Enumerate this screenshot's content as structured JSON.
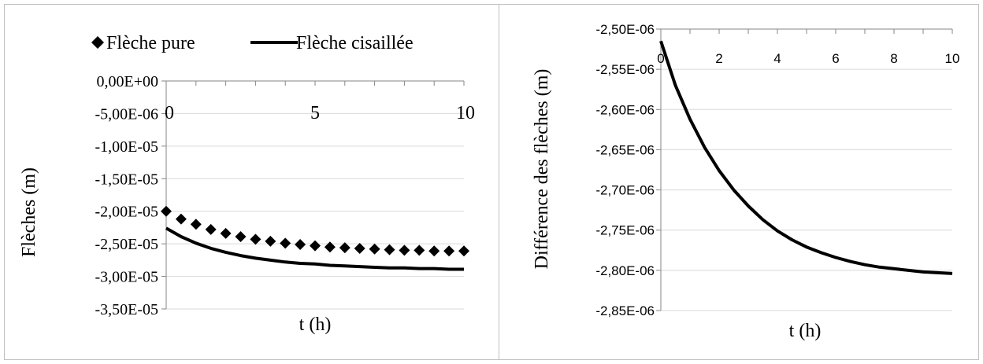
{
  "colors": {
    "ink": "#000000",
    "grid": "#d9d9d9",
    "axis": "#868686",
    "frame": "#bfbfbf"
  },
  "chart_data": [
    {
      "type": "scatter",
      "xlabel": "t (h)",
      "ylabel": "Flèches (m)",
      "xlim": [
        0,
        10
      ],
      "ylim": [
        -3.5e-05,
        0
      ],
      "x_ticks": [
        "0",
        "5",
        "10"
      ],
      "y_ticks": [
        "0,00E+00",
        "-5,00E-06",
        "-1,00E-05",
        "-1,50E-05",
        "-2,00E-05",
        "-2,50E-05",
        "-3,00E-05",
        "-3,50E-05"
      ],
      "grid": true,
      "legend": "top",
      "series": [
        {
          "name": "Flèche pure",
          "type": "scatter",
          "marker": "diamond",
          "x": [
            0,
            0.5,
            1,
            1.5,
            2,
            2.5,
            3,
            3.5,
            4,
            4.5,
            5,
            5.5,
            6,
            6.5,
            7,
            7.5,
            8,
            8.5,
            9,
            9.5,
            10
          ],
          "y": [
            -2e-05,
            -2.12e-05,
            -2.2e-05,
            -2.28e-05,
            -2.34e-05,
            -2.39e-05,
            -2.43e-05,
            -2.46e-05,
            -2.49e-05,
            -2.51e-05,
            -2.53e-05,
            -2.55e-05,
            -2.56e-05,
            -2.57e-05,
            -2.58e-05,
            -2.59e-05,
            -2.6e-05,
            -2.6e-05,
            -2.61e-05,
            -2.61e-05,
            -2.61e-05
          ]
        },
        {
          "name": "Flèche cisaillée",
          "type": "line",
          "x": [
            0,
            0.5,
            1,
            1.5,
            2,
            2.5,
            3,
            3.5,
            4,
            4.5,
            5,
            5.5,
            6,
            6.5,
            7,
            7.5,
            8,
            8.5,
            9,
            9.5,
            10
          ],
          "y": [
            -2.26e-05,
            -2.39e-05,
            -2.49e-05,
            -2.57e-05,
            -2.63e-05,
            -2.68e-05,
            -2.72e-05,
            -2.75e-05,
            -2.78e-05,
            -2.8e-05,
            -2.81e-05,
            -2.83e-05,
            -2.84e-05,
            -2.85e-05,
            -2.86e-05,
            -2.87e-05,
            -2.87e-05,
            -2.88e-05,
            -2.88e-05,
            -2.89e-05,
            -2.89e-05
          ]
        }
      ]
    },
    {
      "type": "line",
      "xlabel": "t (h)",
      "ylabel": "Différence des flèches (m)",
      "xlim": [
        0,
        10
      ],
      "ylim": [
        -2.85e-06,
        -2.5e-06
      ],
      "x_ticks": [
        "0",
        "2",
        "4",
        "6",
        "8",
        "10"
      ],
      "y_ticks": [
        "-2,50E-06",
        "-2,55E-06",
        "-2,60E-06",
        "-2,65E-06",
        "-2,70E-06",
        "-2,75E-06",
        "-2,80E-06",
        "-2,85E-06"
      ],
      "grid": true,
      "series": [
        {
          "x": [
            0,
            0.5,
            1,
            1.5,
            2,
            2.5,
            3,
            3.5,
            4,
            4.5,
            5,
            5.5,
            6,
            6.5,
            7,
            7.5,
            8,
            8.5,
            9,
            9.5,
            10
          ],
          "y": [
            -2.515e-06,
            -2.57e-06,
            -2.612e-06,
            -2.647e-06,
            -2.676e-06,
            -2.7e-06,
            -2.72e-06,
            -2.737e-06,
            -2.751e-06,
            -2.762e-06,
            -2.771e-06,
            -2.778e-06,
            -2.784e-06,
            -2.789e-06,
            -2.793e-06,
            -2.796e-06,
            -2.798e-06,
            -2.8e-06,
            -2.802e-06,
            -2.803e-06,
            -2.804e-06
          ]
        }
      ]
    }
  ]
}
